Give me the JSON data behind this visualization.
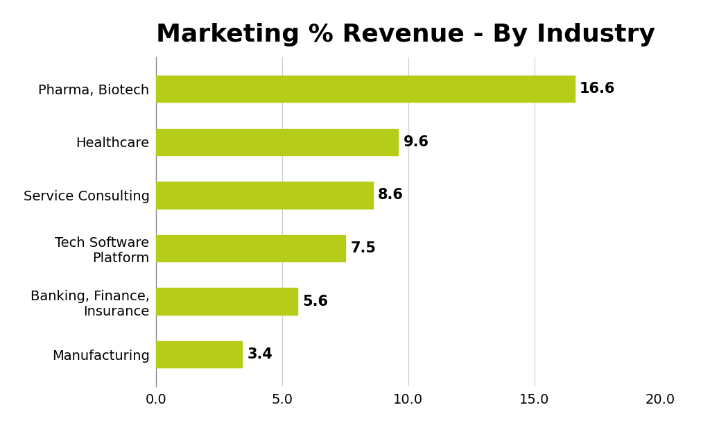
{
  "title": "Marketing % Revenue - By Industry",
  "categories": [
    "Manufacturing",
    "Banking, Finance,\nInsurance",
    "Tech Software\nPlatform",
    "Service Consulting",
    "Healthcare",
    "Pharma, Biotech"
  ],
  "values": [
    3.4,
    5.6,
    7.5,
    8.6,
    9.6,
    16.6
  ],
  "bar_color": "#b5cc18",
  "label_color": "#000000",
  "background_color": "#ffffff",
  "xlim": [
    0,
    20
  ],
  "xticks": [
    0.0,
    5.0,
    10.0,
    15.0,
    20.0
  ],
  "title_fontsize": 26,
  "tick_fontsize": 14,
  "value_fontsize": 15,
  "bar_height": 0.5,
  "grid_color": "#cccccc"
}
